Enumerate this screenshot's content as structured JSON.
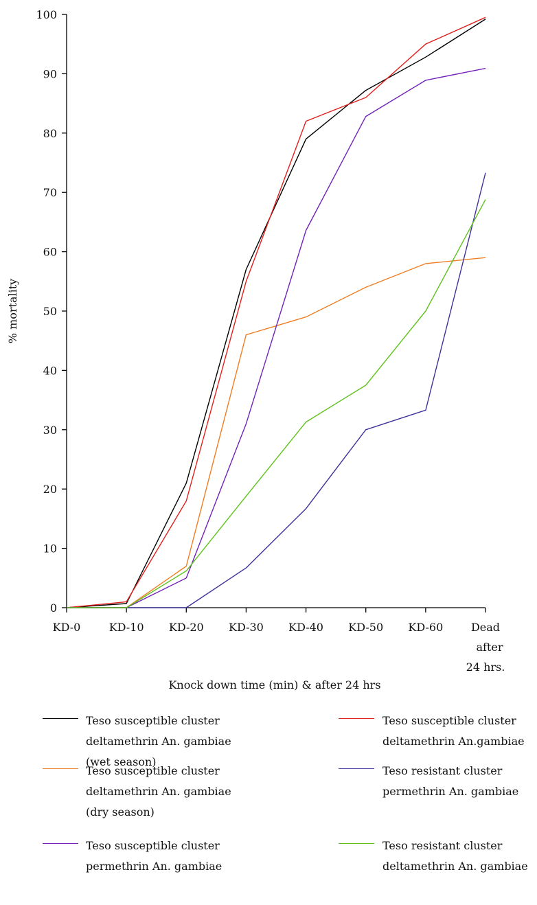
{
  "chart_data": {
    "type": "line",
    "title": "",
    "xlabel": "Knock down time (min) & after 24 hrs",
    "ylabel": "% mortality",
    "categories": [
      [
        "KD-0"
      ],
      [
        "KD-10"
      ],
      [
        "KD-20"
      ],
      [
        "KD-30"
      ],
      [
        "KD-40"
      ],
      [
        "KD-50"
      ],
      [
        "KD-60"
      ],
      [
        "Dead",
        "after",
        "24 hrs."
      ]
    ],
    "ylim": [
      0,
      100
    ],
    "yticks": [
      0,
      10,
      20,
      30,
      40,
      50,
      60,
      70,
      80,
      90,
      100
    ],
    "grid": false,
    "legend_position": "bottom",
    "series": [
      {
        "name_lines": [
          "Teso susceptible cluster",
          "deltamethrin An. gambiae",
          "(wet season)"
        ],
        "color": "#000000",
        "values": [
          0,
          0.7,
          21,
          57,
          79,
          87.2,
          92.8,
          99.2
        ]
      },
      {
        "name_lines": [
          "Teso susceptible cluster",
          "deltamethrin An.gambiae"
        ],
        "color": "#e0201c",
        "values": [
          0,
          1,
          18,
          55,
          82,
          86,
          95,
          99.5
        ]
      },
      {
        "name_lines": [
          "Teso susceptible cluster",
          "deltamethrin An. gambiae",
          "(dry season)"
        ],
        "color": "#f07d22",
        "values": [
          0,
          0,
          7,
          46,
          49,
          54,
          58,
          59
        ]
      },
      {
        "name_lines": [
          "Teso resistant cluster",
          "permethrin An. gambiae"
        ],
        "color": "#3d3399",
        "values": [
          0,
          0,
          0,
          6.7,
          16.7,
          30,
          33.3,
          73.3
        ]
      },
      {
        "name_lines": [
          "Teso susceptible cluster",
          "permethrin An. gambiae"
        ],
        "color": "#7222b8",
        "values": [
          0,
          0,
          5,
          31,
          63.6,
          82.8,
          88.9,
          90.9
        ]
      },
      {
        "name_lines": [
          "Teso resistant cluster",
          "deltamethrin An. gambiae"
        ],
        "color": "#5fc21c",
        "values": [
          0,
          0,
          6.2,
          18.8,
          31.3,
          37.5,
          50,
          68.8
        ]
      }
    ]
  }
}
